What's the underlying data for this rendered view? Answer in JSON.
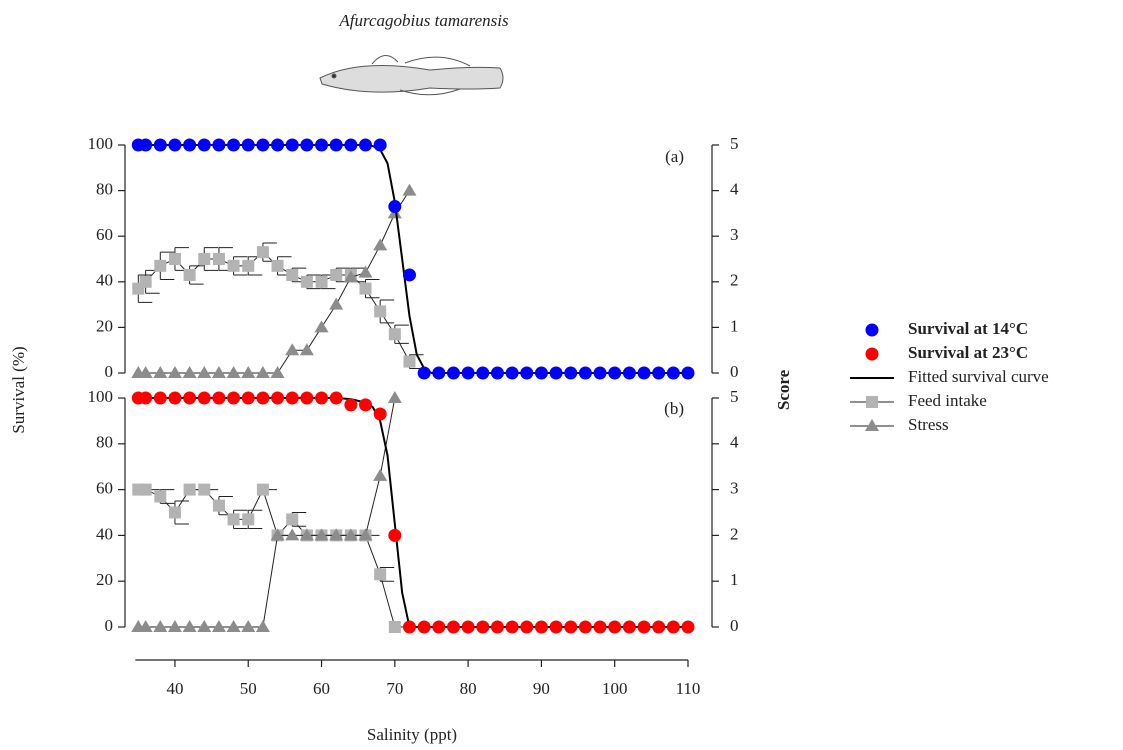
{
  "figure": {
    "title": "Afurcagobius tamarensis"
  },
  "chart_data": [
    {
      "type": "line",
      "panel_label": "(a)",
      "ylabel": "Survival (%)",
      "y2label": "Score",
      "xlim": [
        35,
        110
      ],
      "ylim": [
        0,
        100
      ],
      "yticks": [
        0,
        20,
        40,
        60,
        80,
        100
      ],
      "y2lim": [
        0,
        5
      ],
      "y2ticks": [
        0,
        1,
        2,
        3,
        4,
        5
      ],
      "series": [
        {
          "name": "Survival at 14°C",
          "color": "#0000ff",
          "marker": "circle",
          "x": [
            35,
            36,
            38,
            40,
            42,
            44,
            46,
            48,
            50,
            52,
            54,
            56,
            58,
            60,
            62,
            64,
            66,
            68,
            70,
            72,
            74,
            76,
            78,
            80,
            82,
            84,
            86,
            88,
            90,
            92,
            94,
            96,
            98,
            100,
            102,
            104,
            106,
            108,
            110
          ],
          "values": [
            100,
            100,
            100,
            100,
            100,
            100,
            100,
            100,
            100,
            100,
            100,
            100,
            100,
            100,
            100,
            100,
            100,
            100,
            73,
            43,
            0,
            0,
            0,
            0,
            0,
            0,
            0,
            0,
            0,
            0,
            0,
            0,
            0,
            0,
            0,
            0,
            0,
            0,
            0
          ]
        },
        {
          "name": "Fitted survival curve",
          "color": "#000000",
          "marker": "none",
          "x": [
            35,
            66,
            67,
            68,
            69,
            70,
            71,
            72,
            73,
            74,
            75,
            110
          ],
          "values": [
            100,
            100,
            99.5,
            98,
            92,
            75,
            50,
            25,
            8,
            2,
            0,
            0
          ]
        },
        {
          "name": "Feed intake",
          "color": "#b3b3b3",
          "marker": "square",
          "x": [
            35,
            36,
            38,
            40,
            42,
            44,
            46,
            48,
            50,
            52,
            54,
            56,
            58,
            60,
            62,
            64,
            66,
            68,
            70,
            72
          ],
          "values": [
            37,
            40,
            47,
            50,
            43,
            50,
            50,
            47,
            47,
            53,
            47,
            43,
            40,
            40,
            43,
            43,
            37,
            27,
            17,
            5
          ],
          "errors": [
            6,
            5,
            6,
            5,
            4,
            5,
            5,
            4,
            4,
            4,
            4,
            3,
            3,
            3,
            3,
            3,
            4,
            5,
            4,
            3
          ]
        },
        {
          "name": "Stress",
          "color": "#8c8c8c",
          "marker": "triangle",
          "axis": "y2",
          "x": [
            35,
            36,
            38,
            40,
            42,
            44,
            46,
            48,
            50,
            52,
            54,
            56,
            58,
            60,
            62,
            64,
            66,
            68,
            70,
            72
          ],
          "values": [
            0,
            0,
            0,
            0,
            0,
            0,
            0,
            0,
            0,
            0,
            0,
            0.5,
            0.5,
            1,
            1.5,
            2.1,
            2.2,
            2.8,
            3.5,
            4
          ]
        }
      ]
    },
    {
      "type": "line",
      "panel_label": "(b)",
      "xlabel": "Salinity (ppt)",
      "xlim": [
        35,
        110
      ],
      "xticks": [
        40,
        50,
        60,
        70,
        80,
        90,
        100,
        110
      ],
      "ylim": [
        0,
        100
      ],
      "yticks": [
        0,
        20,
        40,
        60,
        80,
        100
      ],
      "y2lim": [
        0,
        5
      ],
      "y2ticks": [
        0,
        1,
        2,
        3,
        4,
        5
      ],
      "series": [
        {
          "name": "Survival at 23°C",
          "color": "#ff0000",
          "marker": "circle",
          "x": [
            35,
            36,
            38,
            40,
            42,
            44,
            46,
            48,
            50,
            52,
            54,
            56,
            58,
            60,
            62,
            64,
            66,
            68,
            70,
            72,
            74,
            76,
            78,
            80,
            82,
            84,
            86,
            88,
            90,
            92,
            94,
            96,
            98,
            100,
            102,
            104,
            106,
            108,
            110
          ],
          "values": [
            100,
            100,
            100,
            100,
            100,
            100,
            100,
            100,
            100,
            100,
            100,
            100,
            100,
            100,
            100,
            97,
            97,
            93,
            40,
            0,
            0,
            0,
            0,
            0,
            0,
            0,
            0,
            0,
            0,
            0,
            0,
            0,
            0,
            0,
            0,
            0,
            0,
            0,
            0
          ]
        },
        {
          "name": "Fitted survival curve",
          "color": "#000000",
          "marker": "none",
          "x": [
            35,
            62,
            64,
            66,
            67,
            68,
            69,
            70,
            71,
            72,
            110
          ],
          "values": [
            100,
            100,
            99.5,
            98,
            96,
            90,
            75,
            45,
            15,
            0,
            0
          ]
        },
        {
          "name": "Feed intake",
          "color": "#b3b3b3",
          "marker": "square",
          "x": [
            35,
            36,
            38,
            40,
            42,
            44,
            46,
            48,
            50,
            52,
            54,
            56,
            58,
            60,
            62,
            64,
            66,
            68,
            70
          ],
          "values": [
            60,
            60,
            57,
            50,
            60,
            60,
            53,
            47,
            47,
            60,
            40,
            47,
            40,
            40,
            40,
            40,
            40,
            23,
            0
          ],
          "errors": [
            0,
            0,
            3,
            5,
            0,
            0,
            4,
            4,
            4,
            0,
            0,
            3,
            0,
            0,
            0,
            0,
            0,
            3,
            0
          ]
        },
        {
          "name": "Stress",
          "color": "#8c8c8c",
          "marker": "triangle",
          "axis": "y2",
          "x": [
            35,
            36,
            38,
            40,
            42,
            44,
            46,
            48,
            50,
            52,
            54,
            56,
            58,
            60,
            62,
            64,
            66,
            68,
            70
          ],
          "values": [
            0,
            0,
            0,
            0,
            0,
            0,
            0,
            0,
            0,
            0,
            2,
            2,
            2,
            2,
            2,
            2,
            2,
            3.3,
            5
          ]
        }
      ]
    }
  ]
}
